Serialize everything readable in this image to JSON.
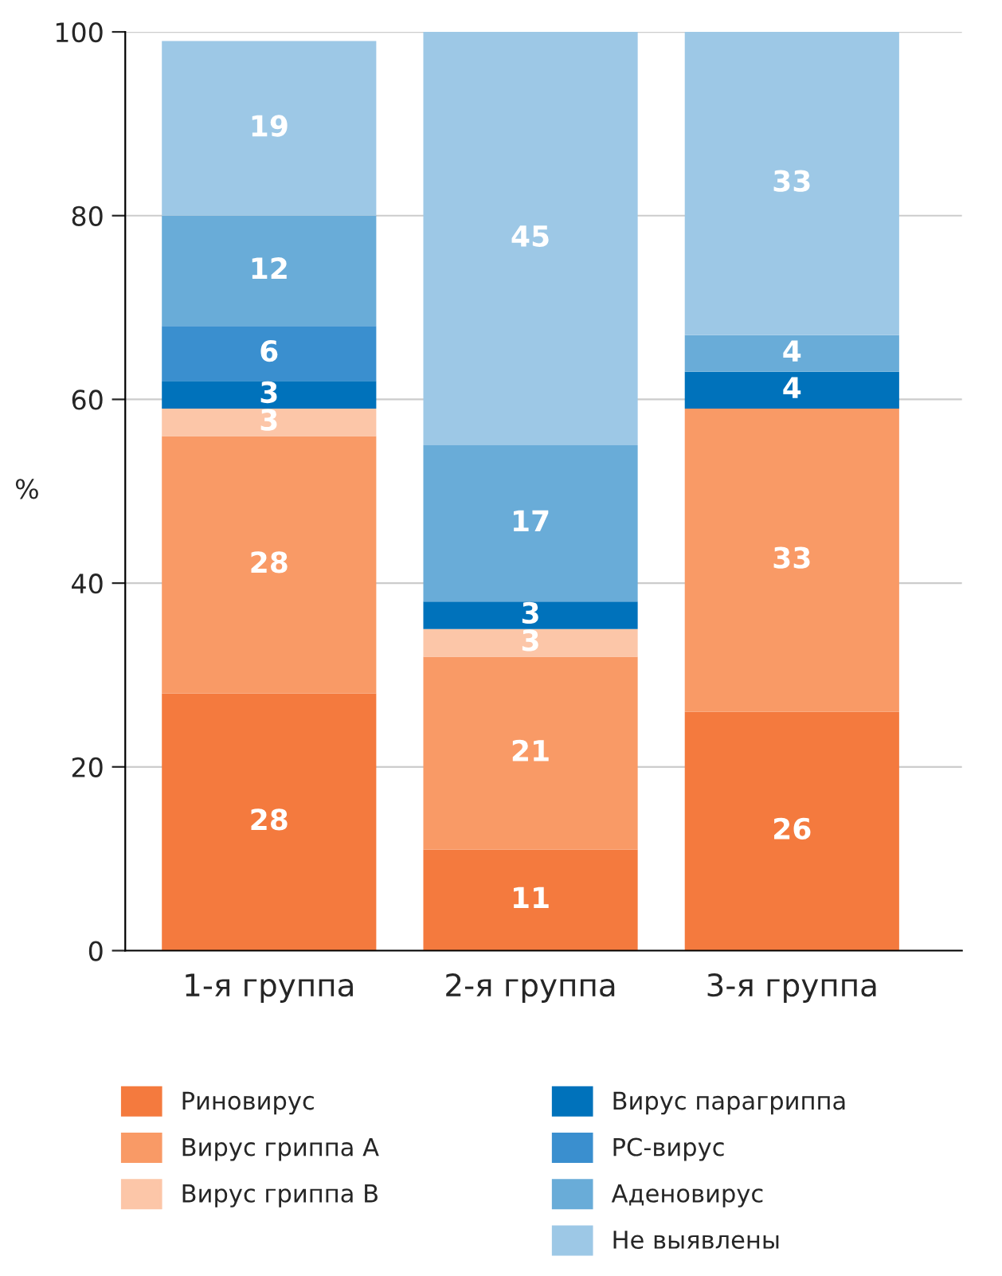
{
  "chart_data": {
    "type": "bar",
    "stacked": true,
    "ylabel": "%",
    "categories": [
      "1-я группа",
      "2-я группа",
      "3-я группа"
    ],
    "series": [
      {
        "name": "Риновирус",
        "color": "#f47a3e",
        "values": [
          28,
          11,
          26
        ]
      },
      {
        "name": "Вирус гриппа А",
        "color": "#f99a66",
        "values": [
          28,
          21,
          33
        ]
      },
      {
        "name": "Вирус гриппа В",
        "color": "#fcc6a8",
        "values": [
          3,
          3,
          null
        ]
      },
      {
        "name": "Вирус парагриппа",
        "color": "#0072bb",
        "values": [
          3,
          3,
          4
        ]
      },
      {
        "name": "РС-вирус",
        "color": "#3a8fcf",
        "values": [
          6,
          null,
          null
        ]
      },
      {
        "name": "Аденовирус",
        "color": "#69acd8",
        "values": [
          12,
          17,
          4
        ]
      },
      {
        "name": "Не выявлены",
        "color": "#9dc8e6",
        "values": [
          19,
          45,
          33
        ]
      }
    ],
    "ylim": [
      0,
      100
    ],
    "yticks": [
      0,
      20,
      40,
      60,
      80,
      100
    ],
    "grid": "y",
    "legend": "bottom",
    "data_labels": true
  }
}
